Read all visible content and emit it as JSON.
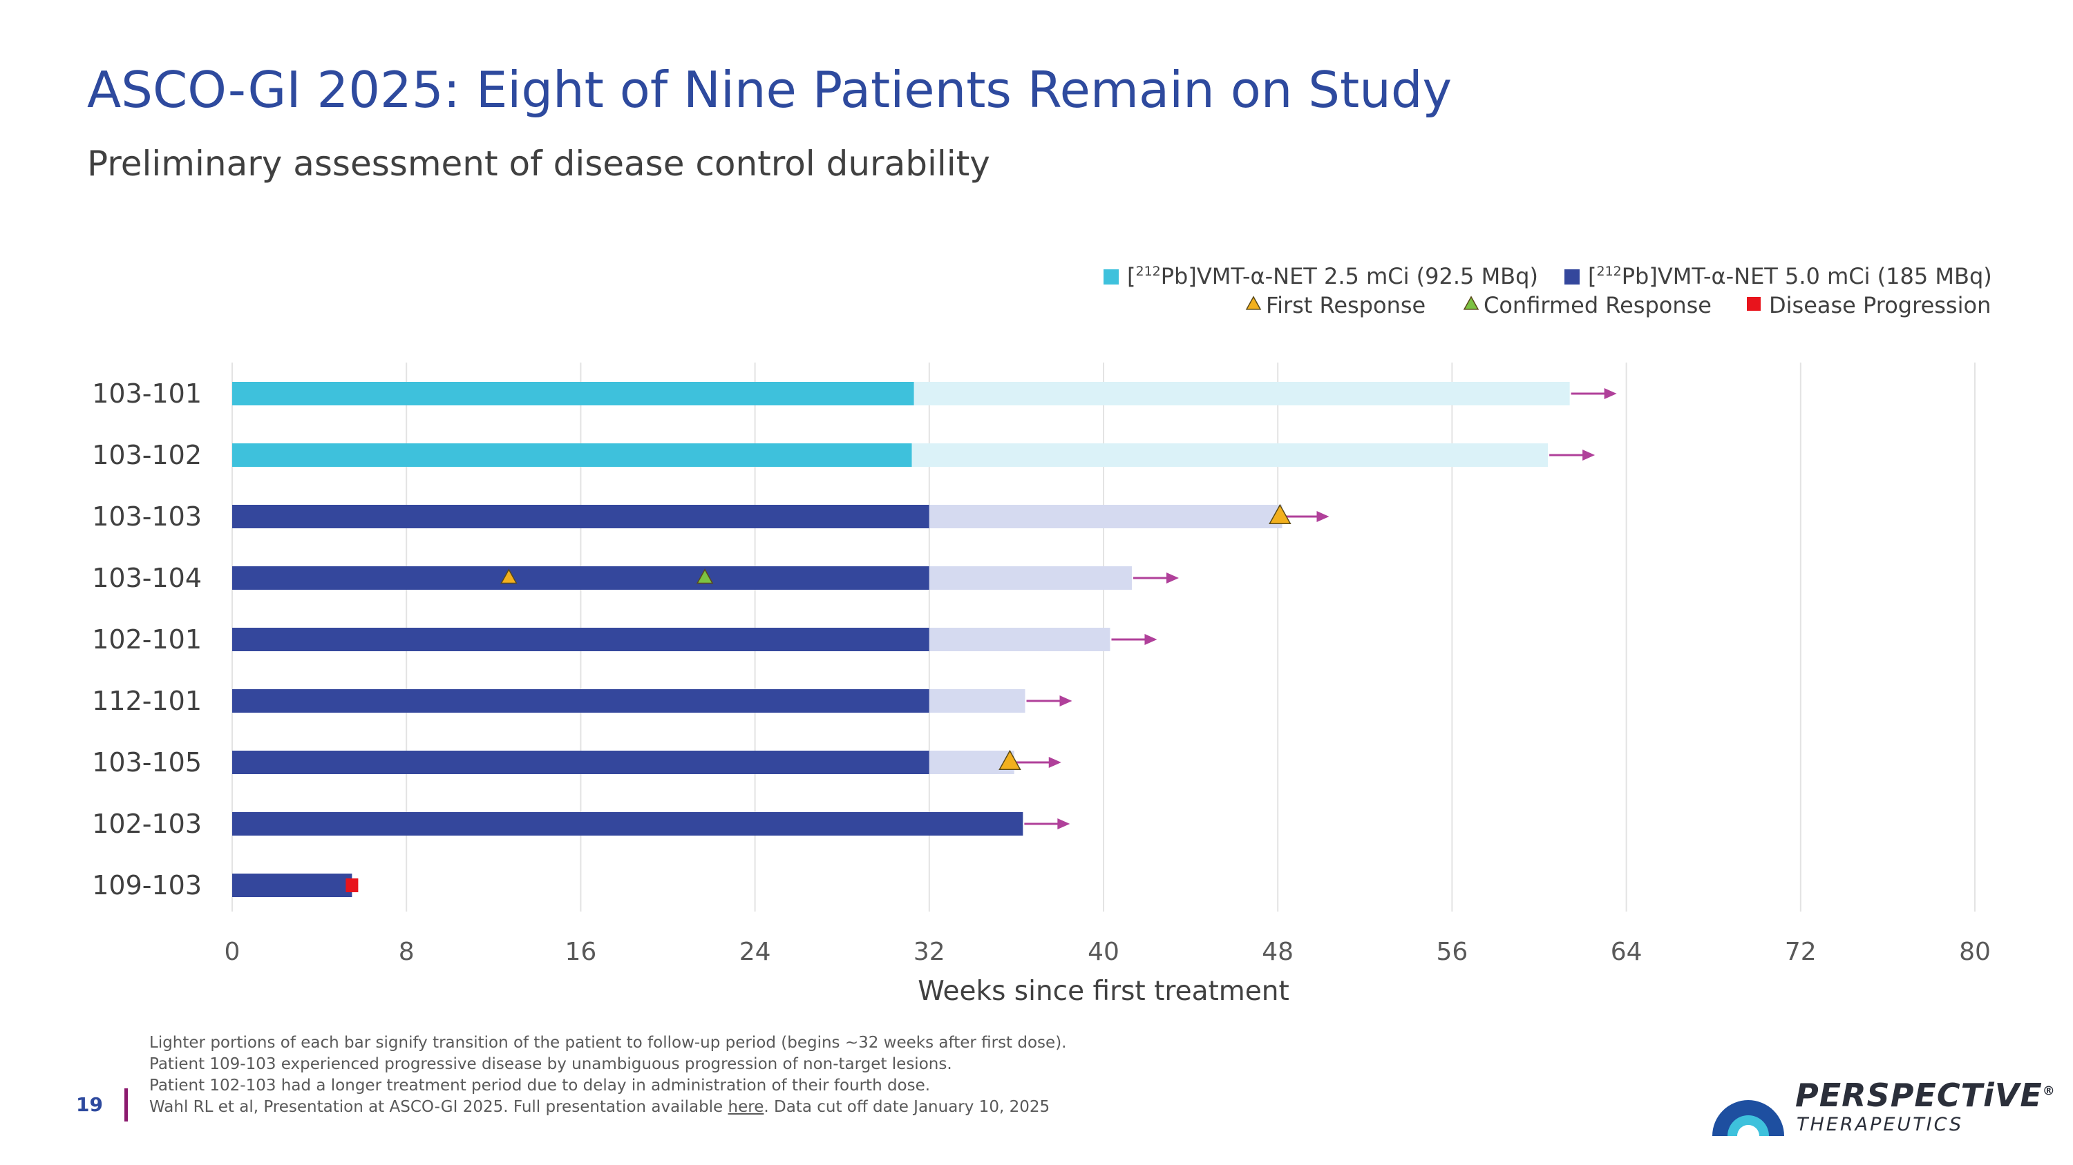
{
  "header": {
    "title": "ASCO-GI 2025: Eight of Nine Patients Remain on Study",
    "subtitle": "Preliminary assessment of disease control durability"
  },
  "colors": {
    "dose_low": "#3EC1DC",
    "dose_low_followup": "#DBF2F8",
    "dose_high": "#34479C",
    "dose_high_followup": "#D5DAF0",
    "first_response": "#F2B01E",
    "confirmed_response": "#7CC242",
    "progression": "#E8141C",
    "ongoing_arrow": "#B0409A",
    "title": "#2E4A9E"
  },
  "chart_data": {
    "type": "bar",
    "orientation": "horizontal",
    "subtype": "swimmer",
    "xlabel": "Weeks since first treatment",
    "xlim": [
      0,
      80
    ],
    "xticks": [
      0,
      8,
      16,
      24,
      32,
      40,
      48,
      56,
      64,
      72,
      80
    ],
    "grid": true,
    "legend": {
      "position": "top-right",
      "dose_entries": [
        {
          "key": "low",
          "pre": "[",
          "sup": "212",
          "post": "Pb]VMT-α-NET 2.5 mCi (92.5 MBq)"
        },
        {
          "key": "high",
          "pre": "[",
          "sup": "212",
          "post": "Pb]VMT-α-NET 5.0 mCi (185 MBq)"
        }
      ],
      "marker_entries": [
        {
          "key": "first",
          "label": "First Response"
        },
        {
          "key": "confirmed",
          "label": "Confirmed Response"
        },
        {
          "key": "progression",
          "label": "Disease Progression"
        }
      ]
    },
    "patients": [
      {
        "id": "103-101",
        "dose": "low",
        "treatment_end": 31.3,
        "followup_end": 61.4,
        "ongoing": true,
        "events": []
      },
      {
        "id": "103-102",
        "dose": "low",
        "treatment_end": 31.2,
        "followup_end": 60.4,
        "ongoing": true,
        "events": []
      },
      {
        "id": "103-103",
        "dose": "high",
        "treatment_end": 32,
        "followup_end": 48.2,
        "ongoing": true,
        "events": [
          {
            "type": "first",
            "week": 48.1,
            "size": "large"
          }
        ]
      },
      {
        "id": "103-104",
        "dose": "high",
        "treatment_end": 32,
        "followup_end": 41.3,
        "ongoing": true,
        "events": [
          {
            "type": "first",
            "week": 12.7,
            "size": "small"
          },
          {
            "type": "confirmed",
            "week": 21.7,
            "size": "small"
          }
        ]
      },
      {
        "id": "102-101",
        "dose": "high",
        "treatment_end": 32,
        "followup_end": 40.3,
        "ongoing": true,
        "events": []
      },
      {
        "id": "112-101",
        "dose": "high",
        "treatment_end": 32,
        "followup_end": 36.4,
        "ongoing": true,
        "events": []
      },
      {
        "id": "103-105",
        "dose": "high",
        "treatment_end": 32,
        "followup_end": 35.9,
        "ongoing": true,
        "events": [
          {
            "type": "first",
            "week": 35.7,
            "size": "large"
          }
        ]
      },
      {
        "id": "102-103",
        "dose": "high",
        "treatment_end": 36.3,
        "followup_end": 36.3,
        "ongoing": true,
        "events": []
      },
      {
        "id": "109-103",
        "dose": "high",
        "treatment_end": 5.5,
        "followup_end": 5.5,
        "ongoing": false,
        "events": [
          {
            "type": "progression",
            "week": 5.5,
            "size": "small"
          }
        ]
      }
    ]
  },
  "footnotes": {
    "line1": "Lighter portions of each bar signify transition of the patient to follow-up period (begins ~32 weeks after first dose).",
    "line2": "Patient 109-103 experienced progressive disease by unambiguous progression of non-target lesions.",
    "line3": "Patient 102-103 had a longer treatment period due to delay in administration of their fourth dose.",
    "line4_pre": "Wahl RL et al, Presentation at ASCO-GI 2025. Full presentation available ",
    "line4_link": "here",
    "line4_post": ". Data cut off date January 10, 2025"
  },
  "page": {
    "number": "19"
  },
  "logo": {
    "name": "PERSPECTiVE",
    "registered": "®",
    "tagline": "THERAPEUTICS"
  }
}
